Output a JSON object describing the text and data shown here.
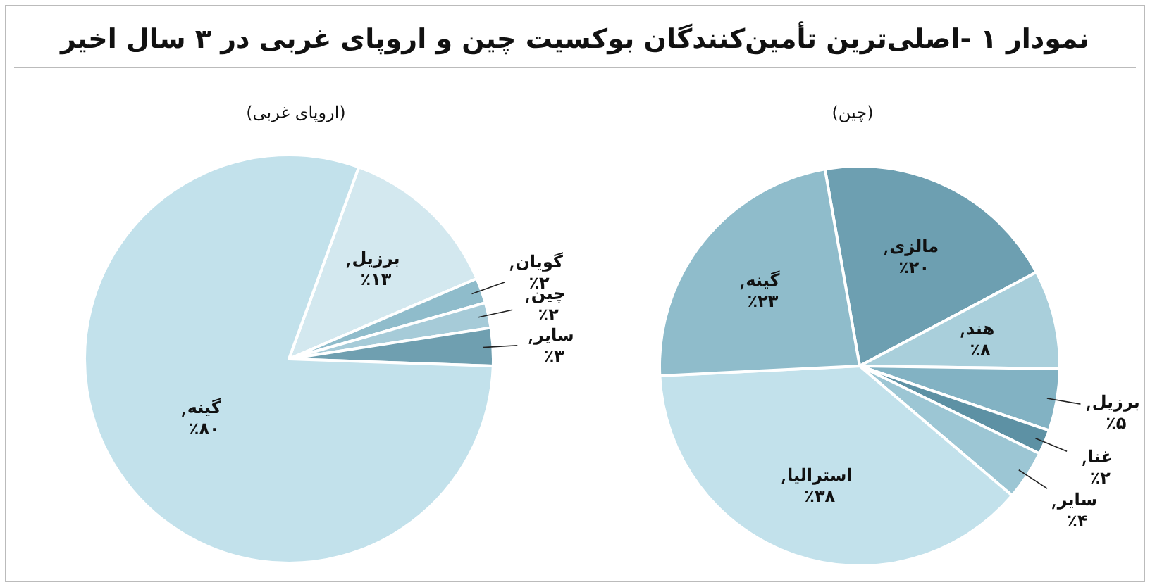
{
  "chart_data": [
    {
      "type": "pie",
      "title": "نمودار ۱ -اصلی‌ترین تأمین‌کنندگان بوکسیت چین و اروپای غربی در ۳ سال اخیر",
      "subtitle": "(چین)",
      "categories": [
        "مالزی",
        "هند",
        "برزیل",
        "غنا",
        "سایر",
        "استرالیا",
        "گینه"
      ],
      "values": [
        20,
        8,
        5,
        2,
        4,
        38,
        23
      ],
      "value_labels": [
        "٪۲۰",
        "٪۸",
        "٪۵",
        "٪۲",
        "٪۴",
        "٪۳۸",
        "٪۲۳"
      ],
      "colors": [
        "#6d9fb1",
        "#a9cfdb",
        "#82b2c3",
        "#5d91a4",
        "#9cc6d4",
        "#c2e1eb",
        "#8fbccb"
      ]
    },
    {
      "type": "pie",
      "subtitle": "(اروپای غربی)",
      "categories": [
        "برزیل",
        "گویان",
        "چین",
        "سایر",
        "گینه"
      ],
      "values": [
        13,
        2,
        2,
        3,
        80
      ],
      "value_labels": [
        "٪۱۳",
        "٪۲",
        "٪۲",
        "٪۳",
        "٪۸۰"
      ],
      "colors": [
        "#d3e8ef",
        "#8fbccb",
        "#a6cbd8",
        "#6f9fb0",
        "#c2e1eb"
      ]
    }
  ]
}
